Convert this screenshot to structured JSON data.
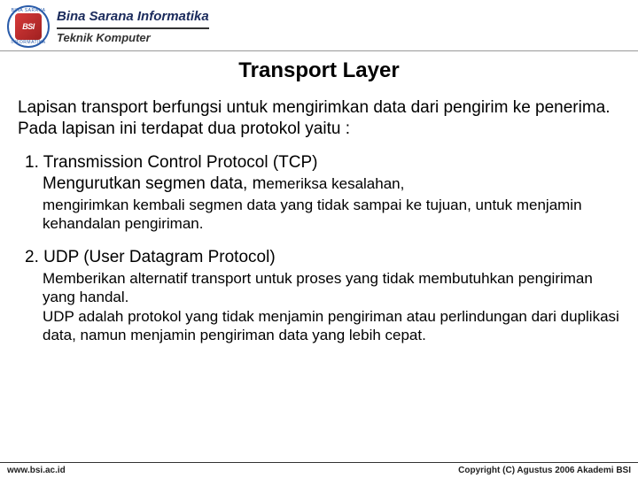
{
  "header": {
    "logo_text": "BSI",
    "logo_ring_top": "BINA SARANA",
    "logo_ring_bottom": "INFORMATIKA",
    "org_name": "Bina Sarana Informatika",
    "dept_name": "Teknik Komputer"
  },
  "title": "Transport Layer",
  "intro": "Lapisan transport berfungsi untuk mengirimkan data dari pengirim ke penerima.\nPada lapisan ini terdapat dua protokol yaitu :",
  "items": [
    {
      "num": "1.",
      "head": "Transmission Control Protocol (TCP)",
      "lead": "Mengurutkan segmen data, m",
      "lead_small": "emeriksa kesalahan,",
      "body": "mengirimkan kembali segmen data yang tidak sampai ke tujuan, untuk menjamin kehandalan pengiriman."
    },
    {
      "num": "2.",
      "head": "UDP (User Datagram Protocol)",
      "lead": "",
      "lead_small": "",
      "body": "Memberikan alternatif transport untuk proses yang tidak membutuhkan pengiriman yang handal.\nUDP adalah protokol yang tidak menjamin pengiriman atau perlindungan dari duplikasi data, namun menjamin pengiriman data yang lebih cepat."
    }
  ],
  "footer": {
    "left": "www.bsi.ac.id",
    "right": "Copyright (C) Agustus 2006 Akademi BSI"
  },
  "colors": {
    "text": "#000000",
    "header_blue": "#1b2b5c",
    "logo_border": "#2a5caa",
    "logo_red": "#d63a3a"
  }
}
